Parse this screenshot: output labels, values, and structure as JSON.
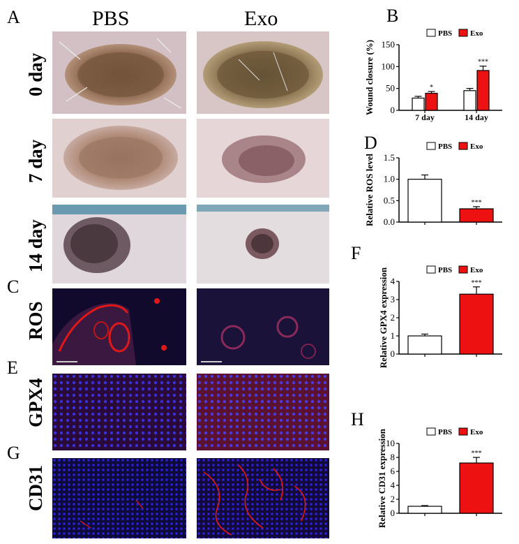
{
  "panels": {
    "A": "A",
    "B": "B",
    "C": "C",
    "D": "D",
    "E": "E",
    "F": "F",
    "G": "G",
    "H": "H"
  },
  "columns": [
    "PBS",
    "Exo"
  ],
  "rows": {
    "day0": "0 day",
    "day7": "7 day",
    "day14": "14 day",
    "ros": "ROS",
    "gpx4": "GPX4",
    "cd31": "CD31"
  },
  "colors": {
    "pbs_bar": "#ffffff",
    "exo_bar": "#ee1111",
    "fluor_blue": "#2a1fd0",
    "fluor_red": "#e01818"
  },
  "chart_data": [
    {
      "id": "B",
      "type": "bar",
      "ylabel": "Wound closure (%)",
      "categories": [
        "7 day",
        "14 day"
      ],
      "ylim": [
        0,
        150
      ],
      "yticks": [
        0,
        50,
        100,
        150
      ],
      "series": [
        {
          "name": "PBS",
          "values": [
            28,
            45
          ],
          "errors": [
            4,
            5
          ]
        },
        {
          "name": "Exo",
          "values": [
            39,
            91
          ],
          "errors": [
            4,
            10
          ]
        }
      ],
      "annotations": [
        {
          "category": "7 day",
          "series": "Exo",
          "text": "*"
        },
        {
          "category": "14 day",
          "series": "Exo",
          "text": "***"
        }
      ],
      "legend": "top"
    },
    {
      "id": "D",
      "type": "bar",
      "ylabel": "Relative ROS level",
      "categories": [
        "PBS",
        "Exo"
      ],
      "ylim": [
        0,
        1.5
      ],
      "yticks": [
        0.0,
        0.5,
        1.0,
        1.5
      ],
      "tick_decimals": 1,
      "series": [
        {
          "name": "PBS",
          "values": [
            1.0,
            null
          ],
          "errors": [
            0.1,
            null
          ]
        },
        {
          "name": "Exo",
          "values": [
            null,
            0.31
          ],
          "errors": [
            null,
            0.05
          ]
        }
      ],
      "annotations": [
        {
          "category": "Exo",
          "series": "Exo",
          "text": "***"
        }
      ],
      "legend": "top"
    },
    {
      "id": "F",
      "type": "bar",
      "ylabel": "Relative GPX4 expression",
      "categories": [
        "PBS",
        "Exo"
      ],
      "ylim": [
        0,
        4
      ],
      "yticks": [
        0,
        1,
        2,
        3,
        4
      ],
      "series": [
        {
          "name": "PBS",
          "values": [
            1.0,
            null
          ],
          "errors": [
            0.1,
            null
          ]
        },
        {
          "name": "Exo",
          "values": [
            null,
            3.3
          ],
          "errors": [
            null,
            0.4
          ]
        }
      ],
      "annotations": [
        {
          "category": "Exo",
          "series": "Exo",
          "text": "***"
        }
      ],
      "legend": "top"
    },
    {
      "id": "H",
      "type": "bar",
      "ylabel": "Relative CD31 expression",
      "categories": [
        "PBS",
        "Exo"
      ],
      "ylim": [
        0,
        10
      ],
      "yticks": [
        0,
        2,
        4,
        6,
        8,
        10
      ],
      "series": [
        {
          "name": "PBS",
          "values": [
            1.0,
            null
          ],
          "errors": [
            0.1,
            null
          ]
        },
        {
          "name": "Exo",
          "values": [
            null,
            7.2
          ],
          "errors": [
            null,
            0.8
          ]
        }
      ],
      "annotations": [
        {
          "category": "Exo",
          "series": "Exo",
          "text": "***"
        }
      ],
      "legend": "top"
    }
  ]
}
